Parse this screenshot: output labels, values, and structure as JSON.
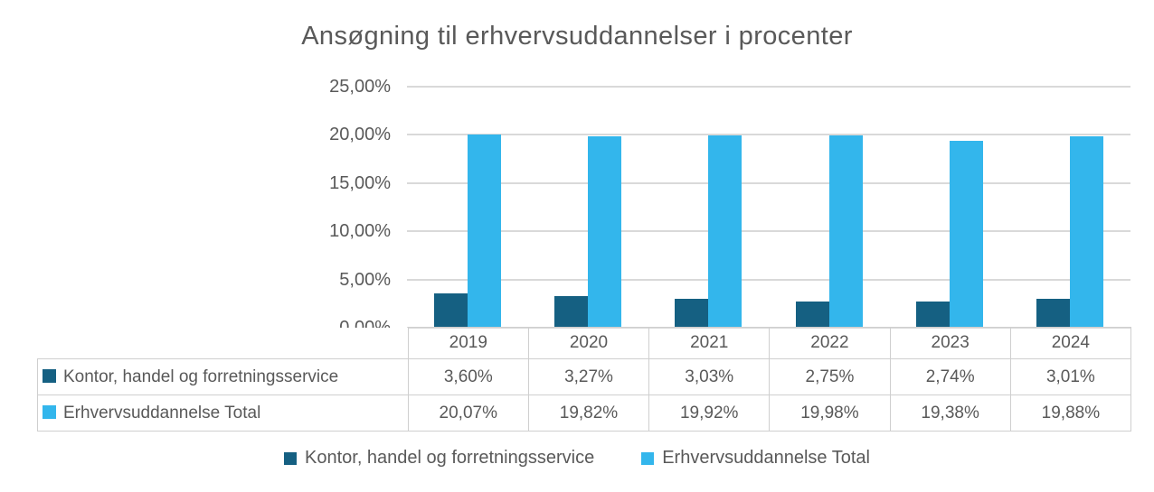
{
  "chart_data": {
    "type": "bar",
    "title": "Ansøgning til erhvervsuddannelser i procenter",
    "categories": [
      "2019",
      "2020",
      "2021",
      "2022",
      "2023",
      "2024"
    ],
    "series": [
      {
        "name": "Kontor, handel og forretningsservice",
        "color": "#156082",
        "values": [
          3.6,
          3.27,
          3.03,
          2.75,
          2.74,
          3.01
        ],
        "value_labels": [
          "3,60%",
          "3,27%",
          "3,03%",
          "2,75%",
          "2,74%",
          "3,01%"
        ]
      },
      {
        "name": "Erhvervsuddannelse Total",
        "color": "#33B6EC",
        "values": [
          20.07,
          19.82,
          19.92,
          19.98,
          19.38,
          19.88
        ],
        "value_labels": [
          "20,07%",
          "19,82%",
          "19,92%",
          "19,98%",
          "19,38%",
          "19,88%"
        ]
      }
    ],
    "y_axis": {
      "min": 0,
      "max": 25,
      "step": 5,
      "tick_labels": [
        "0,00%",
        "5,00%",
        "10,00%",
        "15,00%",
        "20,00%",
        "25,00%"
      ]
    },
    "grid": true,
    "legend_position": "bottom",
    "data_table_shown": true
  },
  "legend": {
    "items": [
      {
        "label": "Kontor, handel og forretningsservice",
        "color": "#156082"
      },
      {
        "label": "Erhvervsuddannelse Total",
        "color": "#33B6EC"
      }
    ]
  },
  "colors": {
    "title_text": "#595959",
    "axis_text": "#595959",
    "table_text": "#595959",
    "gridline": "#D9D9D9",
    "table_border": "#CFCFCF",
    "series1": "#156082",
    "series2": "#33B6EC",
    "background": "#FFFFFF"
  }
}
